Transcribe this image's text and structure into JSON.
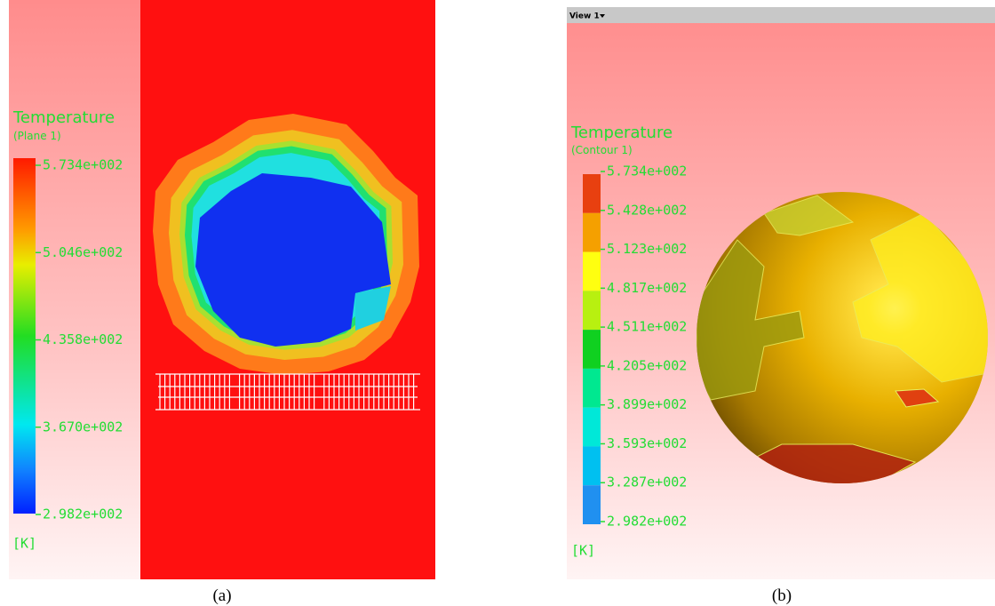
{
  "panel_a": {
    "legend": {
      "title": "Temperature",
      "subtitle": "(Plane 1)",
      "labels": [
        "5.734e+002",
        "5.046e+002",
        "4.358e+002",
        "3.670e+002",
        "2.982e+002"
      ],
      "unit": "[K]"
    },
    "caption": "(a)"
  },
  "panel_b": {
    "view_menu": "View 1",
    "legend": {
      "title": "Temperature",
      "subtitle": "(Contour 1)",
      "labels": [
        "5.734e+002",
        "5.428e+002",
        "5.123e+002",
        "4.817e+002",
        "4.511e+002",
        "4.205e+002",
        "3.899e+002",
        "3.593e+002",
        "3.287e+002",
        "2.982e+002"
      ],
      "unit": "[K]"
    },
    "caption": "(b)"
  }
}
